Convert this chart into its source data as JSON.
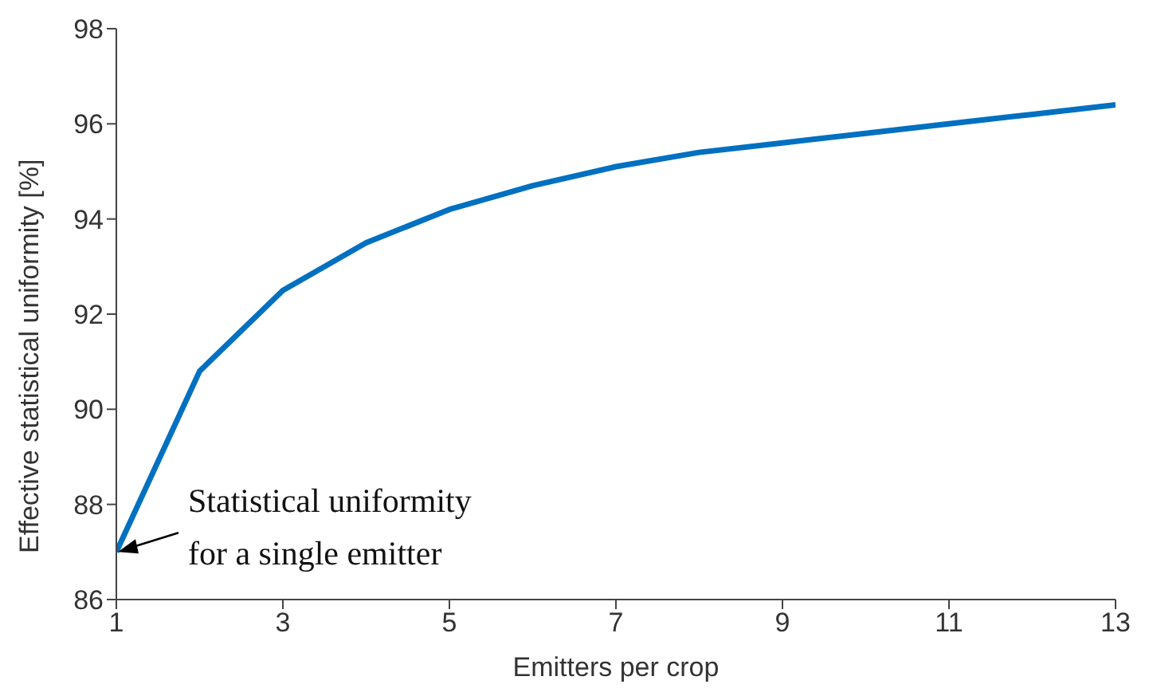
{
  "chart_data": {
    "type": "line",
    "xlabel": "Emitters per crop",
    "ylabel": "Effective statistical uniformity [%]",
    "x": [
      1,
      2,
      3,
      4,
      5,
      6,
      7,
      8,
      9,
      10,
      11,
      12,
      13
    ],
    "series": [
      {
        "color": "#0070c0",
        "values": [
          87.0,
          90.8,
          92.5,
          93.5,
          94.2,
          94.7,
          95.1,
          95.4,
          95.6,
          95.8,
          96.0,
          96.2,
          96.4
        ]
      }
    ],
    "xlim": [
      1,
      13
    ],
    "xticks": [
      1,
      3,
      5,
      7,
      9,
      11,
      13
    ],
    "ylim": [
      86,
      98
    ],
    "yticks": [
      86,
      88,
      90,
      92,
      94,
      96,
      98
    ],
    "grid": false,
    "legend": false,
    "marker": "none",
    "line_style": "solid",
    "annotations": [
      {
        "text": "Statistical uniformity\nfor a single emitter",
        "x": 1,
        "y": 87
      }
    ]
  }
}
